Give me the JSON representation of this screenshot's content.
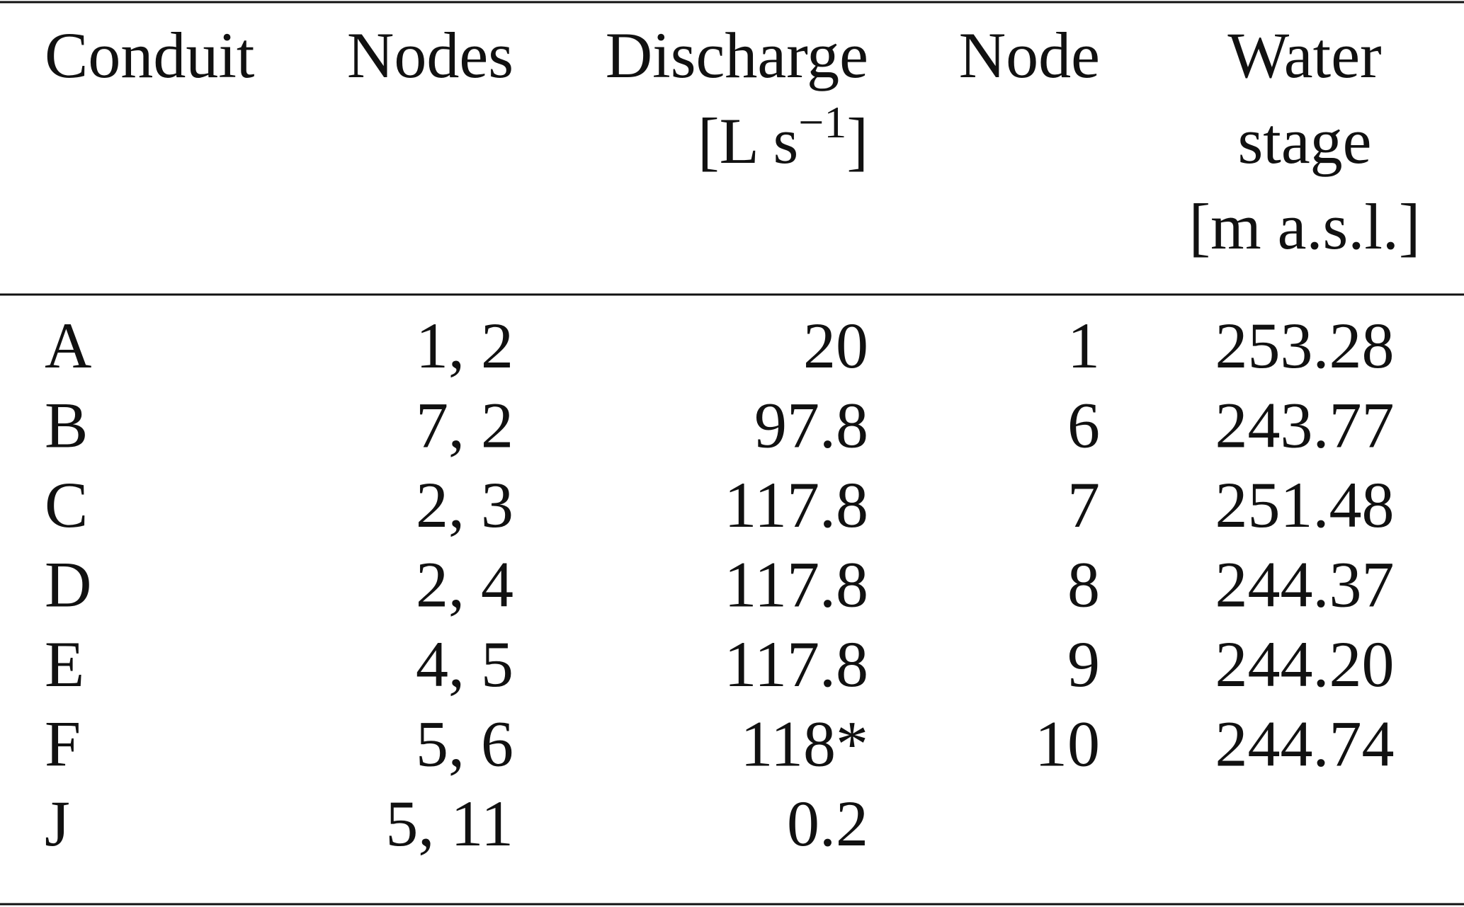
{
  "table": {
    "header": [
      {
        "lines": [
          "Conduit"
        ]
      },
      {
        "lines": [
          "Nodes"
        ]
      },
      {
        "lines": [
          "Discharge"
        ],
        "unit": {
          "base": "[L s",
          "exponent": "−1",
          "close": "]"
        }
      },
      {
        "lines": [
          "Node"
        ]
      },
      {
        "lines": [
          "Water",
          "stage",
          "[m a.s.l.]"
        ]
      }
    ],
    "rows": [
      [
        "A",
        "1, 2",
        "20",
        "1",
        "253.28"
      ],
      [
        "B",
        "7, 2",
        "97.8",
        "6",
        "243.77"
      ],
      [
        "C",
        "2, 3",
        "117.8",
        "7",
        "251.48"
      ],
      [
        "D",
        "2, 4",
        "117.8",
        "8",
        "244.37"
      ],
      [
        "E",
        "4, 5",
        "117.8",
        "9",
        "244.20"
      ],
      [
        "F",
        "5, 6",
        "118*",
        "10",
        "244.74"
      ],
      [
        "J",
        "5, 11",
        "0.2",
        null,
        null
      ]
    ]
  }
}
